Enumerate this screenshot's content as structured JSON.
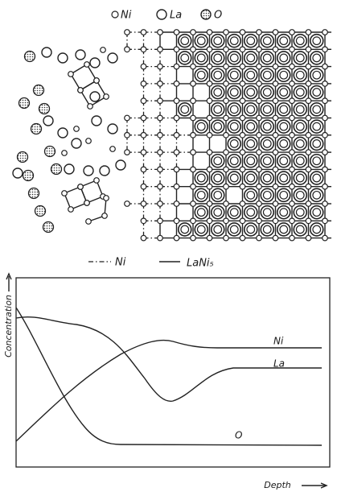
{
  "legend_top": [
    {
      "label": "Ni"
    },
    {
      "label": "La"
    },
    {
      "label": "O"
    }
  ],
  "legend_bottom": [
    {
      "label": "Ni"
    },
    {
      "label": "LaNi₅"
    }
  ],
  "graph": {
    "y_axis_label": "Concentration",
    "x_axis_label": "Depth",
    "curve_labels": [
      "Ni",
      "La",
      "O"
    ]
  }
}
